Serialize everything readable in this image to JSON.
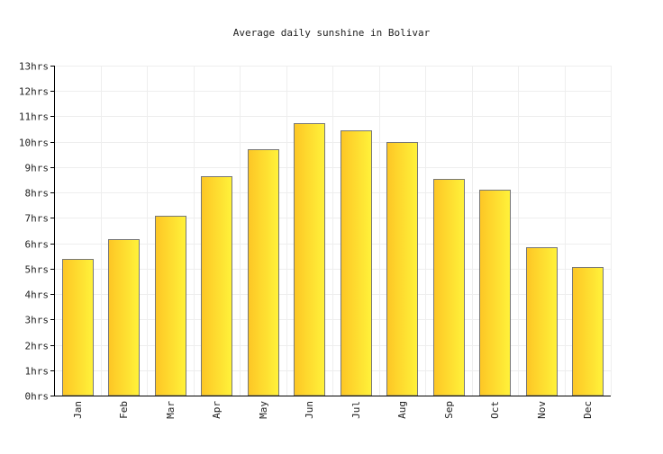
{
  "chart_data": {
    "type": "bar",
    "title": "Average daily sunshine in Bolivar",
    "xlabel": "",
    "ylabel": "",
    "categories": [
      "Jan",
      "Feb",
      "Mar",
      "Apr",
      "May",
      "Jun",
      "Jul",
      "Aug",
      "Sep",
      "Oct",
      "Nov",
      "Dec"
    ],
    "series": [
      {
        "values": [
          5.4,
          6.15,
          7.1,
          8.65,
          9.7,
          10.75,
          10.45,
          10.0,
          8.55,
          8.1,
          5.85,
          5.05
        ]
      }
    ],
    "ylim": [
      0,
      13
    ],
    "yticks": [
      0,
      1,
      2,
      3,
      4,
      5,
      6,
      7,
      8,
      9,
      10,
      11,
      12,
      13
    ],
    "ytick_labels": [
      "0hrs",
      "1hrs",
      "2hrs",
      "3hrs",
      "4hrs",
      "5hrs",
      "6hrs",
      "7hrs",
      "8hrs",
      "9hrs",
      "10hrs",
      "11hrs",
      "12hrs",
      "13hrs"
    ],
    "grid": true,
    "legend": "none",
    "colors": {
      "bar_light": "#fff23a",
      "bar_dark": "#fdc625",
      "bar_stroke": "#777777",
      "grid": "#eeeeee",
      "axis": "#000000"
    }
  }
}
